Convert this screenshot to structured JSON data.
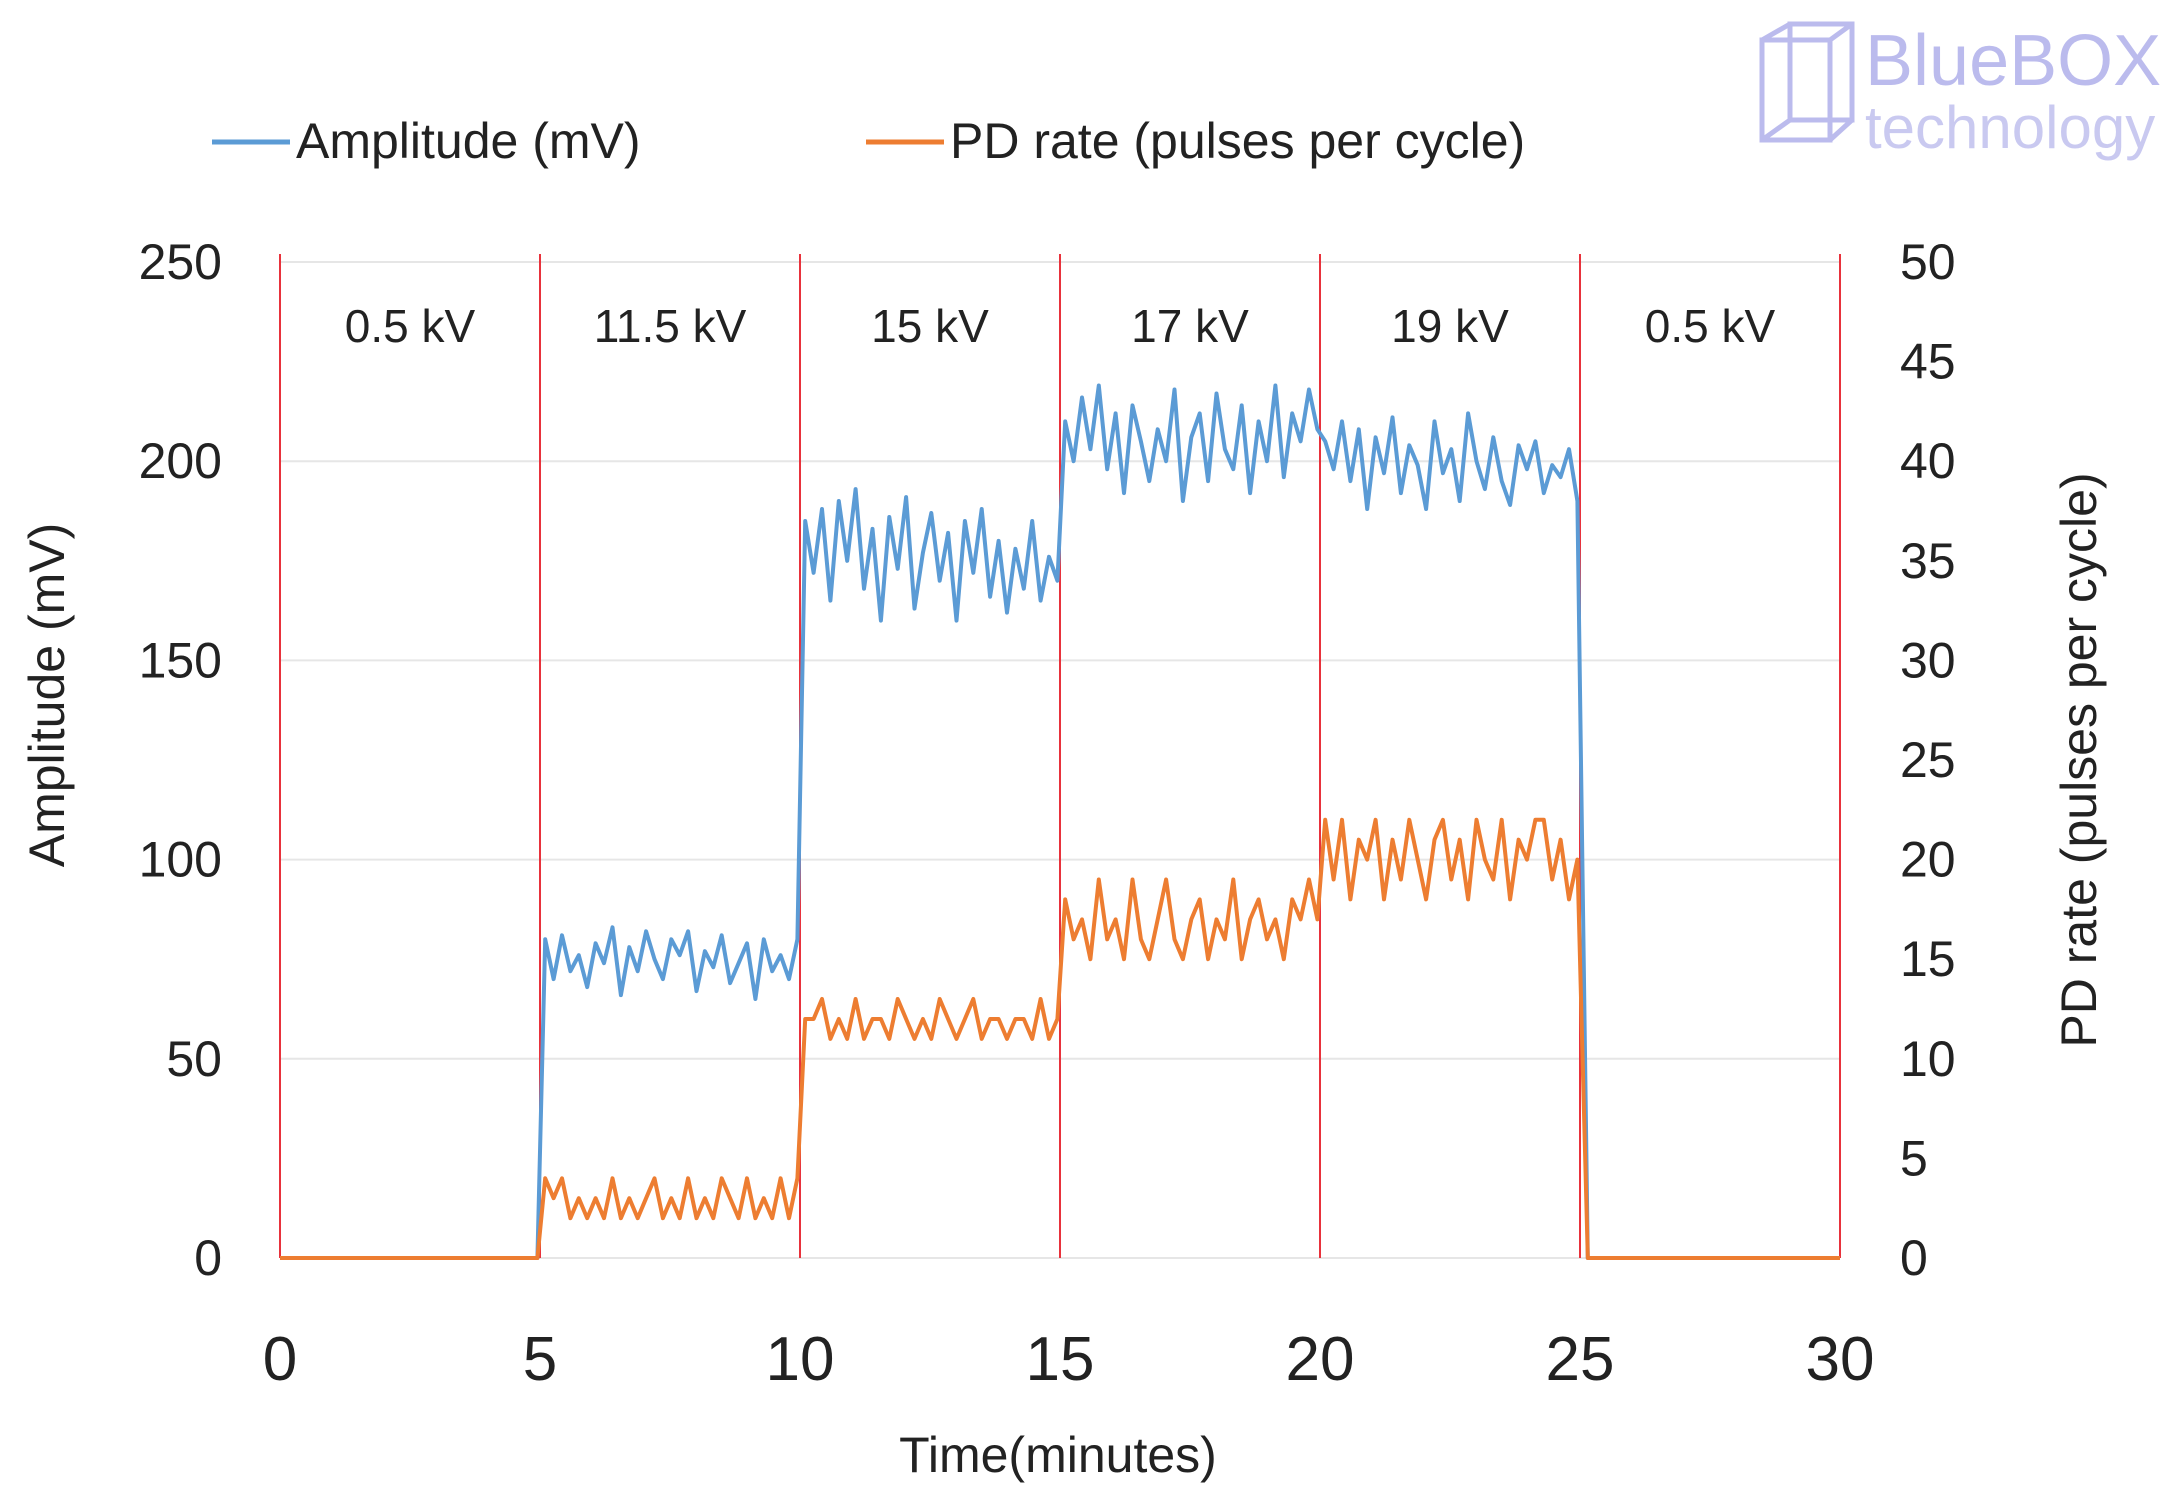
{
  "watermark": {
    "line1": "BlueBOX",
    "line2": "technology",
    "icon": "cube-logo-icon"
  },
  "chart_data": {
    "type": "line",
    "xlabel": "Time(minutes)",
    "ylabel_left": "Amplitude (mV)",
    "ylabel_right": "PD rate (pulses per cycle)",
    "xlim": [
      0,
      30
    ],
    "ylim_left": [
      0,
      250
    ],
    "ylim_right": [
      0,
      50
    ],
    "x_ticks": [
      "0",
      "5",
      "10",
      "15",
      "20",
      "25",
      "30"
    ],
    "y_left_ticks": [
      "0",
      "50",
      "100",
      "150",
      "200",
      "250"
    ],
    "y_right_ticks": [
      "0",
      "5",
      "10",
      "15",
      "20",
      "25",
      "30",
      "35",
      "40",
      "45",
      "50"
    ],
    "grid": true,
    "legend_position": "top",
    "colors": {
      "amplitude": "#5b9bd5",
      "pd_rate": "#ed7d31",
      "divider": "#e8323c",
      "grid": "#e6e6e6",
      "axis_text": "#222222"
    },
    "voltage_dividers": [
      0,
      5,
      10,
      15,
      20,
      25,
      30
    ],
    "voltage_segments": [
      {
        "label": "0.5 kV",
        "x_start": 0,
        "x_end": 5
      },
      {
        "label": "11.5 kV",
        "x_start": 5,
        "x_end": 10
      },
      {
        "label": "15 kV",
        "x_start": 10,
        "x_end": 15
      },
      {
        "label": "17 kV",
        "x_start": 15,
        "x_end": 20
      },
      {
        "label": "19 kV",
        "x_start": 20,
        "x_end": 25
      },
      {
        "label": "0.5 kV",
        "x_start": 25,
        "x_end": 30
      }
    ],
    "series": [
      {
        "name": "Amplitude (mV)",
        "axis": "left",
        "color": "#5b9bd5",
        "baseline_flat": [
          [
            0,
            0
          ],
          [
            4.95,
            0
          ]
        ],
        "noisy_segments": [
          {
            "start": 5.1,
            "end": 9.95,
            "values": [
              80,
              70,
              81,
              72,
              76,
              68,
              79,
              74,
              83,
              66,
              78,
              72,
              82,
              75,
              70,
              80,
              76,
              82,
              67,
              77,
              73,
              81,
              69,
              74,
              79,
              65,
              80,
              72,
              76,
              70,
              80
            ]
          },
          {
            "start": 10.1,
            "end": 14.95,
            "values": [
              185,
              172,
              188,
              165,
              190,
              175,
              193,
              168,
              183,
              160,
              186,
              173,
              191,
              163,
              177,
              187,
              170,
              182,
              160,
              185,
              172,
              188,
              166,
              180,
              162,
              178,
              168,
              185,
              165,
              176,
              170
            ]
          },
          {
            "start": 15.1,
            "end": 19.95,
            "values": [
              210,
              200,
              216,
              203,
              219,
              198,
              212,
              192,
              214,
              205,
              195,
              208,
              200,
              218,
              190,
              206,
              212,
              195,
              217,
              203,
              198,
              214,
              192,
              210,
              200,
              219,
              196,
              212,
              205,
              218,
              208
            ]
          },
          {
            "start": 20.1,
            "end": 24.95,
            "values": [
              205,
              198,
              210,
              195,
              208,
              188,
              206,
              197,
              211,
              192,
              204,
              199,
              188,
              210,
              197,
              203,
              190,
              212,
              200,
              193,
              206,
              195,
              189,
              204,
              198,
              205,
              192,
              199,
              196,
              203,
              190
            ]
          }
        ],
        "tail_flat": [
          [
            25.15,
            0
          ],
          [
            30,
            0
          ]
        ]
      },
      {
        "name": "PD rate (pulses per cycle)",
        "axis": "right",
        "color": "#ed7d31",
        "baseline_flat": [
          [
            0,
            0
          ],
          [
            4.95,
            0
          ]
        ],
        "noisy_segments": [
          {
            "start": 5.1,
            "end": 9.95,
            "values": [
              4,
              3,
              4,
              2,
              3,
              2,
              3,
              2,
              4,
              2,
              3,
              2,
              3,
              4,
              2,
              3,
              2,
              4,
              2,
              3,
              2,
              4,
              3,
              2,
              4,
              2,
              3,
              2,
              4,
              2,
              4
            ]
          },
          {
            "start": 10.1,
            "end": 14.95,
            "values": [
              12,
              12,
              13,
              11,
              12,
              11,
              13,
              11,
              12,
              12,
              11,
              13,
              12,
              11,
              12,
              11,
              13,
              12,
              11,
              12,
              13,
              11,
              12,
              12,
              11,
              12,
              12,
              11,
              13,
              11,
              12
            ]
          },
          {
            "start": 15.1,
            "end": 19.95,
            "values": [
              18,
              16,
              17,
              15,
              19,
              16,
              17,
              15,
              19,
              16,
              15,
              17,
              19,
              16,
              15,
              17,
              18,
              15,
              17,
              16,
              19,
              15,
              17,
              18,
              16,
              17,
              15,
              18,
              17,
              19,
              17
            ]
          },
          {
            "start": 20.1,
            "end": 24.95,
            "values": [
              22,
              19,
              22,
              18,
              21,
              20,
              22,
              18,
              21,
              19,
              22,
              20,
              18,
              21,
              22,
              19,
              21,
              18,
              22,
              20,
              19,
              22,
              18,
              21,
              20,
              22,
              22,
              19,
              21,
              18,
              20
            ]
          }
        ],
        "tail_flat": [
          [
            25.15,
            0
          ],
          [
            30,
            0
          ]
        ]
      }
    ]
  }
}
